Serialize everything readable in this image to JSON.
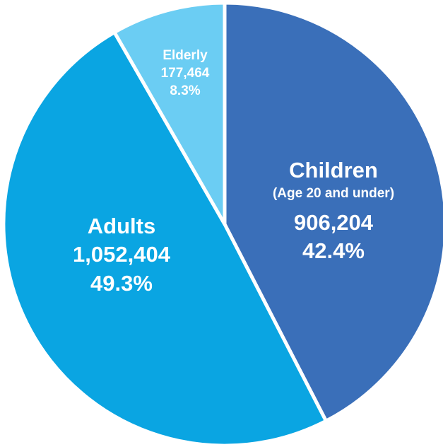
{
  "chart_data": {
    "type": "pie",
    "slices": [
      {
        "label": "Children",
        "sublabel": "(Age 20 and under)",
        "value_text": "906,204",
        "value": 906204,
        "percent_text": "42.4%",
        "percent": 42.4,
        "color": "#3a6fb9"
      },
      {
        "label": "Adults",
        "sublabel": "",
        "value_text": "1,052,404",
        "value": 1052404,
        "percent_text": "49.3%",
        "percent": 49.3,
        "color": "#0aa5e2"
      },
      {
        "label": "Elderly",
        "sublabel": "",
        "value_text": "177,464",
        "value": 177464,
        "percent_text": "8.3%",
        "percent": 8.3,
        "color": "#6bcdf3"
      }
    ],
    "start": "12 o'clock",
    "direction": "clockwise",
    "legend": "none"
  }
}
